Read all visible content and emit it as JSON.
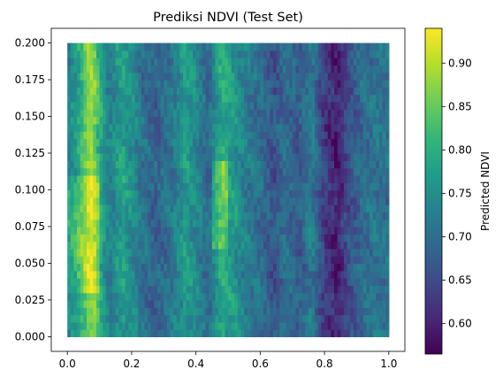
{
  "chart_data": {
    "type": "heatmap",
    "title": "Prediksi NDVI (Test Set)",
    "xlabel": "",
    "ylabel": "",
    "xlim": [
      -0.05,
      1.05
    ],
    "ylim": [
      -0.01,
      0.21
    ],
    "x_ticks": [
      "0.0",
      "0.2",
      "0.4",
      "0.6",
      "0.8",
      "1.0"
    ],
    "x_tick_values": [
      0.0,
      0.2,
      0.4,
      0.6,
      0.8,
      1.0
    ],
    "y_ticks": [
      "0.000",
      "0.025",
      "0.050",
      "0.075",
      "0.100",
      "0.125",
      "0.150",
      "0.175",
      "0.200"
    ],
    "y_tick_values": [
      0.0,
      0.025,
      0.05,
      0.075,
      0.1,
      0.125,
      0.15,
      0.175,
      0.2
    ],
    "colormap": "viridis",
    "colorbar": {
      "label": "Predicted NDVI",
      "range": [
        0.565,
        0.94
      ],
      "ticks": [
        "0.60",
        "0.65",
        "0.70",
        "0.75",
        "0.80",
        "0.85",
        "0.90"
      ],
      "tick_values": [
        0.6,
        0.65,
        0.7,
        0.75,
        0.8,
        0.85,
        0.9
      ]
    },
    "data_extent": {
      "x": [
        0.0,
        1.0
      ],
      "y": [
        0.0,
        0.2
      ]
    },
    "column_profile": {
      "x": [
        0.0,
        0.03,
        0.06,
        0.08,
        0.1,
        0.13,
        0.17,
        0.2,
        0.24,
        0.28,
        0.33,
        0.37,
        0.4,
        0.44,
        0.48,
        0.52,
        0.56,
        0.6,
        0.64,
        0.68,
        0.72,
        0.76,
        0.8,
        0.84,
        0.88,
        0.92,
        0.96,
        1.0
      ],
      "ndvi": [
        0.73,
        0.77,
        0.86,
        0.88,
        0.8,
        0.72,
        0.78,
        0.75,
        0.7,
        0.68,
        0.72,
        0.77,
        0.74,
        0.69,
        0.8,
        0.76,
        0.72,
        0.7,
        0.66,
        0.7,
        0.67,
        0.72,
        0.63,
        0.6,
        0.66,
        0.7,
        0.71,
        0.7
      ]
    }
  }
}
